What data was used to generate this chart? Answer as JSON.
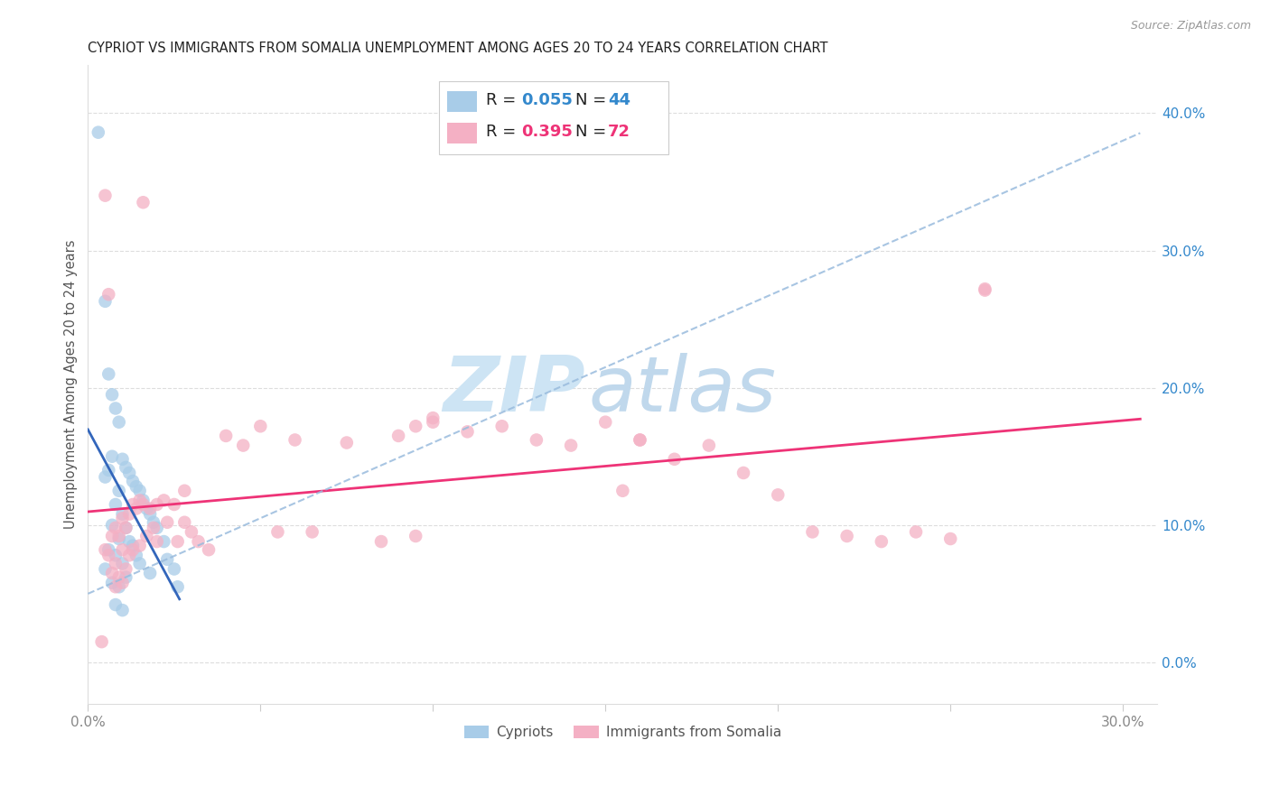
{
  "title": "CYPRIOT VS IMMIGRANTS FROM SOMALIA UNEMPLOYMENT AMONG AGES 20 TO 24 YEARS CORRELATION CHART",
  "source": "Source: ZipAtlas.com",
  "ylabel": "Unemployment Among Ages 20 to 24 years",
  "xlim": [
    0.0,
    0.31
  ],
  "ylim": [
    -0.03,
    0.435
  ],
  "xticks": [
    0.0,
    0.05,
    0.1,
    0.15,
    0.2,
    0.25,
    0.3
  ],
  "yticks_right": [
    0.0,
    0.1,
    0.2,
    0.3,
    0.4
  ],
  "color_cypriot": "#a8cce8",
  "color_somalia": "#f4b0c4",
  "color_line_cypriot": "#3366bb",
  "color_line_somalia": "#ee3377",
  "color_dashed": "#99bbdd",
  "watermark_color": "#d0e8f8",
  "background_color": "#ffffff",
  "R_cypriot": "0.055",
  "N_cypriot": "44",
  "R_somalia": "0.395",
  "N_somalia": "72",
  "text_color_blue": "#3388cc",
  "text_color_pink": "#ee3377",
  "grid_color": "#dddddd",
  "tick_color": "#888888",
  "cypriot_x": [
    0.003,
    0.005,
    0.005,
    0.005,
    0.006,
    0.006,
    0.006,
    0.007,
    0.007,
    0.007,
    0.007,
    0.008,
    0.008,
    0.008,
    0.008,
    0.009,
    0.009,
    0.009,
    0.009,
    0.01,
    0.01,
    0.01,
    0.01,
    0.011,
    0.011,
    0.011,
    0.012,
    0.012,
    0.013,
    0.013,
    0.014,
    0.014,
    0.015,
    0.015,
    0.016,
    0.017,
    0.018,
    0.018,
    0.019,
    0.02,
    0.022,
    0.023,
    0.025,
    0.026
  ],
  "cypriot_y": [
    0.386,
    0.263,
    0.135,
    0.068,
    0.21,
    0.14,
    0.082,
    0.195,
    0.15,
    0.1,
    0.058,
    0.185,
    0.115,
    0.078,
    0.042,
    0.175,
    0.125,
    0.09,
    0.055,
    0.148,
    0.108,
    0.072,
    0.038,
    0.142,
    0.098,
    0.062,
    0.138,
    0.088,
    0.132,
    0.085,
    0.128,
    0.078,
    0.125,
    0.072,
    0.118,
    0.112,
    0.108,
    0.065,
    0.102,
    0.098,
    0.088,
    0.075,
    0.068,
    0.055
  ],
  "somalia_x": [
    0.004,
    0.005,
    0.005,
    0.006,
    0.006,
    0.007,
    0.007,
    0.008,
    0.008,
    0.008,
    0.009,
    0.009,
    0.01,
    0.01,
    0.01,
    0.011,
    0.011,
    0.012,
    0.012,
    0.013,
    0.013,
    0.014,
    0.015,
    0.015,
    0.016,
    0.017,
    0.018,
    0.019,
    0.02,
    0.02,
    0.022,
    0.023,
    0.025,
    0.026,
    0.028,
    0.03,
    0.032,
    0.035,
    0.04,
    0.045,
    0.05,
    0.055,
    0.06,
    0.065,
    0.075,
    0.085,
    0.09,
    0.095,
    0.1,
    0.11,
    0.12,
    0.13,
    0.14,
    0.15,
    0.155,
    0.16,
    0.17,
    0.18,
    0.19,
    0.2,
    0.21,
    0.22,
    0.23,
    0.24,
    0.25,
    0.26,
    0.016,
    0.028,
    0.1,
    0.16,
    0.26,
    0.095
  ],
  "somalia_y": [
    0.015,
    0.34,
    0.082,
    0.268,
    0.078,
    0.092,
    0.065,
    0.098,
    0.072,
    0.055,
    0.092,
    0.062,
    0.105,
    0.082,
    0.058,
    0.098,
    0.068,
    0.108,
    0.078,
    0.115,
    0.082,
    0.112,
    0.118,
    0.085,
    0.115,
    0.092,
    0.112,
    0.098,
    0.115,
    0.088,
    0.118,
    0.102,
    0.115,
    0.088,
    0.102,
    0.095,
    0.088,
    0.082,
    0.165,
    0.158,
    0.172,
    0.095,
    0.162,
    0.095,
    0.16,
    0.088,
    0.165,
    0.172,
    0.178,
    0.168,
    0.172,
    0.162,
    0.158,
    0.175,
    0.125,
    0.162,
    0.148,
    0.158,
    0.138,
    0.122,
    0.095,
    0.092,
    0.088,
    0.095,
    0.09,
    0.272,
    0.335,
    0.125,
    0.175,
    0.162,
    0.271,
    0.092
  ]
}
